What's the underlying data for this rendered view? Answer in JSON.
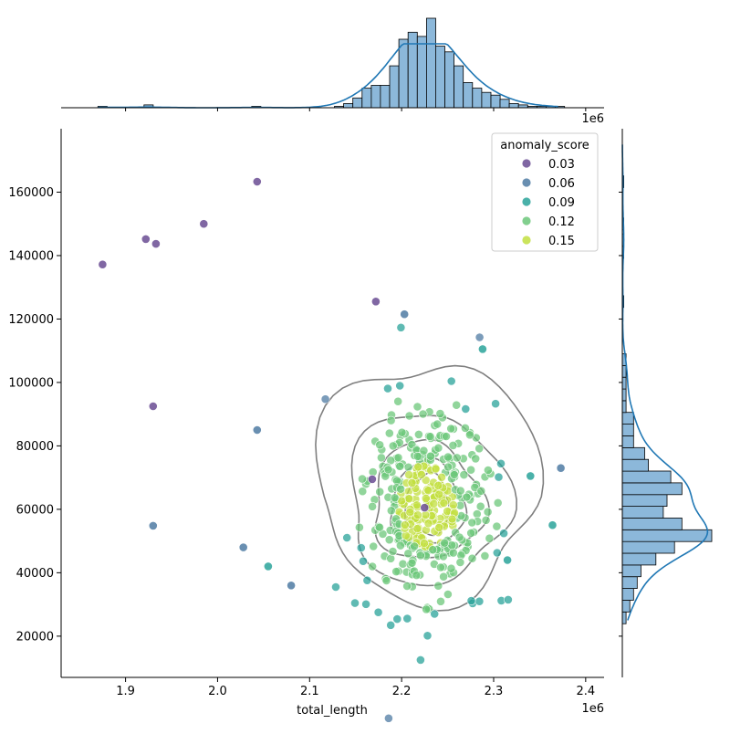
{
  "chart_data": {
    "type": "scatter",
    "title": "",
    "xlabel": "total_length",
    "ylabel": "",
    "x_offset_text": "1e6",
    "top_offset_text": "1e6",
    "xlim": [
      1.83,
      2.42
    ],
    "ylim": [
      7000,
      180000
    ],
    "x_ticks": [
      1.9,
      2.0,
      2.1,
      2.2,
      2.3,
      2.4
    ],
    "x_tick_labels": [
      "1.9",
      "2.0",
      "2.1",
      "2.2",
      "2.3",
      "2.4"
    ],
    "y_ticks": [
      20000,
      40000,
      60000,
      80000,
      100000,
      120000,
      140000,
      160000
    ],
    "y_tick_labels": [
      "20000",
      "40000",
      "60000",
      "80000",
      "100000",
      "120000",
      "140000",
      "160000"
    ],
    "legend": {
      "title": "anomaly_score",
      "placement": "top-right",
      "entries": [
        {
          "label": "0.03",
          "color": "#6a4c93"
        },
        {
          "label": "0.06",
          "color": "#4f7ba3"
        },
        {
          "label": "0.09",
          "color": "#2aa39a"
        },
        {
          "label": "0.12",
          "color": "#6cc77a"
        },
        {
          "label": "0.15",
          "color": "#c2df3f"
        }
      ]
    },
    "colors": {
      "axis": "#000000",
      "hist_fill": "#8cb8da",
      "kde_line": "#1f77b4",
      "contour": "#7f7f7f"
    },
    "outliers": [
      {
        "x": 1.875,
        "y": 137200,
        "score": 0.03
      },
      {
        "x": 1.922,
        "y": 145200,
        "score": 0.03
      },
      {
        "x": 1.933,
        "y": 143700,
        "score": 0.03
      },
      {
        "x": 1.985,
        "y": 150000,
        "score": 0.03
      },
      {
        "x": 2.043,
        "y": 163300,
        "score": 0.03
      },
      {
        "x": 1.93,
        "y": 92500,
        "score": 0.03
      },
      {
        "x": 1.93,
        "y": 54800,
        "score": 0.05
      },
      {
        "x": 2.043,
        "y": 85000,
        "score": 0.05
      },
      {
        "x": 2.028,
        "y": 48000,
        "score": 0.06
      },
      {
        "x": 2.055,
        "y": 42000,
        "score": 0.08
      },
      {
        "x": 2.08,
        "y": 36000,
        "score": 0.06
      },
      {
        "x": 2.172,
        "y": 125500,
        "score": 0.04
      },
      {
        "x": 2.203,
        "y": 121500,
        "score": 0.06
      },
      {
        "x": 2.373,
        "y": 73000,
        "score": 0.05
      },
      {
        "x": 2.364,
        "y": 55000,
        "score": 0.09
      },
      {
        "x": 2.34,
        "y": 70500,
        "score": 0.09
      },
      {
        "x": 2.315,
        "y": 44000,
        "score": 0.08
      },
      {
        "x": 2.288,
        "y": 110500,
        "score": 0.09
      },
      {
        "x": 2.168,
        "y": 69500,
        "score": 0.04
      },
      {
        "x": 2.225,
        "y": 60500,
        "score": 0.04
      }
    ],
    "cluster": {
      "n": 400,
      "center_x": 2.228,
      "center_y": 60000,
      "sd_x": 0.034,
      "sd_y": 14000
    },
    "top_hist": {
      "bins": [
        {
          "x": 1.875,
          "count": 1
        },
        {
          "x": 1.925,
          "count": 2
        },
        {
          "x": 2.042,
          "count": 1
        },
        {
          "x": 2.132,
          "count": 1
        },
        {
          "x": 2.142,
          "count": 3
        },
        {
          "x": 2.152,
          "count": 7
        },
        {
          "x": 2.162,
          "count": 14
        },
        {
          "x": 2.172,
          "count": 16
        },
        {
          "x": 2.182,
          "count": 16
        },
        {
          "x": 2.192,
          "count": 30
        },
        {
          "x": 2.202,
          "count": 49
        },
        {
          "x": 2.212,
          "count": 54
        },
        {
          "x": 2.222,
          "count": 51
        },
        {
          "x": 2.232,
          "count": 64
        },
        {
          "x": 2.242,
          "count": 44
        },
        {
          "x": 2.252,
          "count": 40
        },
        {
          "x": 2.262,
          "count": 30
        },
        {
          "x": 2.272,
          "count": 18
        },
        {
          "x": 2.282,
          "count": 14
        },
        {
          "x": 2.292,
          "count": 11
        },
        {
          "x": 2.302,
          "count": 9
        },
        {
          "x": 2.312,
          "count": 6
        },
        {
          "x": 2.322,
          "count": 3
        },
        {
          "x": 2.332,
          "count": 2
        },
        {
          "x": 2.342,
          "count": 1
        },
        {
          "x": 2.352,
          "count": 1
        },
        {
          "x": 2.362,
          "count": 1
        },
        {
          "x": 2.372,
          "count": 1
        }
      ],
      "bin_width": 0.01,
      "max_count": 64
    },
    "right_hist": {
      "bins": [
        {
          "y": 25800,
          "count": 1
        },
        {
          "y": 29500,
          "count": 2
        },
        {
          "y": 33200,
          "count": 3
        },
        {
          "y": 36900,
          "count": 4
        },
        {
          "y": 40600,
          "count": 5
        },
        {
          "y": 44300,
          "count": 9
        },
        {
          "y": 48000,
          "count": 14
        },
        {
          "y": 51700,
          "count": 24
        },
        {
          "y": 55400,
          "count": 16
        },
        {
          "y": 59100,
          "count": 11
        },
        {
          "y": 62800,
          "count": 12
        },
        {
          "y": 66500,
          "count": 16
        },
        {
          "y": 70200,
          "count": 13
        },
        {
          "y": 73900,
          "count": 7
        },
        {
          "y": 77600,
          "count": 6
        },
        {
          "y": 81300,
          "count": 3
        },
        {
          "y": 85000,
          "count": 3
        },
        {
          "y": 88700,
          "count": 3
        },
        {
          "y": 92400,
          "count": 1
        },
        {
          "y": 96100,
          "count": 1
        },
        {
          "y": 99800,
          "count": 1
        },
        {
          "y": 103500,
          "count": 1
        },
        {
          "y": 107200,
          "count": 1
        },
        {
          "y": 125500,
          "count": 0.4
        },
        {
          "y": 141000,
          "count": 0.4
        },
        {
          "y": 145000,
          "count": 0.4
        },
        {
          "y": 150000,
          "count": 0.4
        },
        {
          "y": 163300,
          "count": 0.4
        }
      ],
      "bin_height": 3700,
      "max_count": 24
    }
  }
}
